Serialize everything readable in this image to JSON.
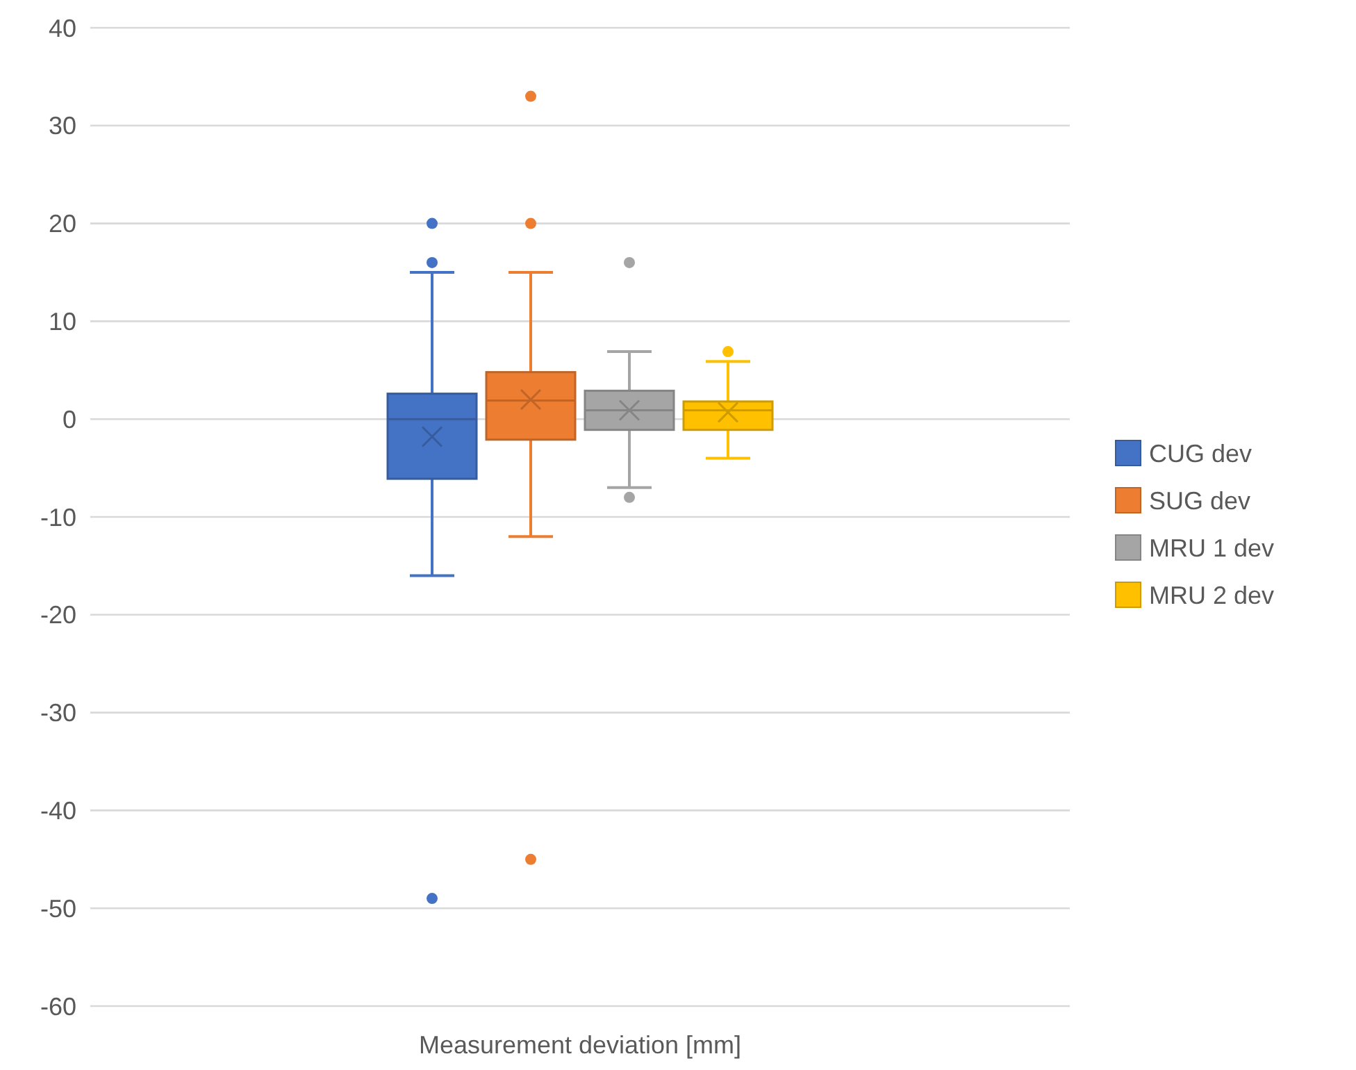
{
  "chart_data": {
    "type": "box",
    "categories": [
      "Measurement deviation [mm]"
    ],
    "ylim": [
      -60,
      40
    ],
    "yticks": [
      -60,
      -50,
      -40,
      -30,
      -20,
      -10,
      0,
      10,
      20,
      30,
      40
    ],
    "grid": "y",
    "legend": "right",
    "series": [
      {
        "name": "CUG dev",
        "color": "#4472c4",
        "boxes": [
          {
            "low": -16,
            "q1": -6.1,
            "median": 0,
            "q3": 2.6,
            "high": 15,
            "mean": -1.8,
            "outliers": [
              20,
              16,
              -49
            ]
          }
        ]
      },
      {
        "name": "SUG dev",
        "color": "#ed7d31",
        "boxes": [
          {
            "low": -12,
            "q1": -2.1,
            "median": 1.9,
            "q3": 4.8,
            "high": 15,
            "mean": 2,
            "outliers": [
              33,
              20,
              -45
            ]
          }
        ]
      },
      {
        "name": "MRU 1 dev",
        "color": "#a5a5a5",
        "boxes": [
          {
            "low": -7,
            "q1": -1.1,
            "median": 0.9,
            "q3": 2.9,
            "high": 6.9,
            "mean": 0.9,
            "outliers": [
              16,
              -8
            ]
          }
        ]
      },
      {
        "name": "MRU 2 dev",
        "color": "#ffc000",
        "boxes": [
          {
            "low": -4,
            "q1": -1.1,
            "median": 0.9,
            "q3": 1.8,
            "high": 5.9,
            "mean": 0.7,
            "outliers": [
              6.9
            ]
          }
        ]
      }
    ]
  }
}
